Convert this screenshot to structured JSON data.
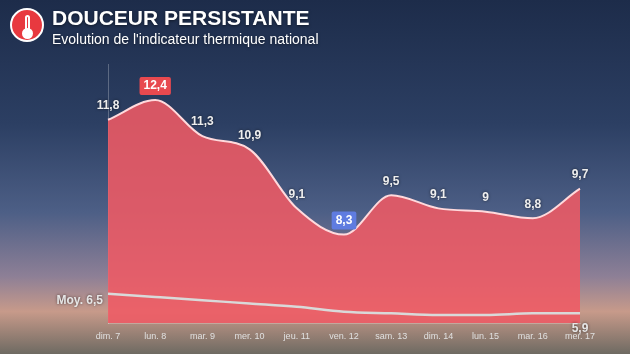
{
  "chart_data": {
    "type": "line",
    "title": "DOUCEUR PERSISTANTE",
    "subtitle": "Evolution de l'indicateur thermique national",
    "categories": [
      "dim. 7",
      "lun. 8",
      "mar. 9",
      "mer. 10",
      "jeu. 11",
      "ven. 12",
      "sam. 13",
      "dim. 14",
      "lun. 15",
      "mar. 16",
      "mer. 17"
    ],
    "series": [
      {
        "type": "area",
        "color": "#ef5a64",
        "values": [
          11.8,
          12.4,
          11.3,
          10.9,
          9.1,
          8.3,
          9.5,
          9.1,
          9,
          8.8,
          9.7
        ],
        "value_labels": [
          "11,8",
          "12,4",
          "11,3",
          "10,9",
          "9,1",
          "8,3",
          "9,5",
          "9,1",
          "9",
          "8,8",
          "9,7"
        ]
      },
      {
        "name": "Moy.",
        "type": "line",
        "color": "#d9d9d9",
        "values": [
          6.5,
          6.4,
          6.3,
          6.2,
          6.1,
          5.95,
          5.9,
          5.85,
          5.85,
          5.9,
          5.9
        ],
        "value_labels": [
          "6,5",
          null,
          null,
          null,
          null,
          null,
          null,
          null,
          null,
          null,
          "5,9"
        ]
      }
    ],
    "ylim": [
      5.6,
      13.5
    ],
    "data_labels": true,
    "tick_labels": "x",
    "grid": false
  }
}
